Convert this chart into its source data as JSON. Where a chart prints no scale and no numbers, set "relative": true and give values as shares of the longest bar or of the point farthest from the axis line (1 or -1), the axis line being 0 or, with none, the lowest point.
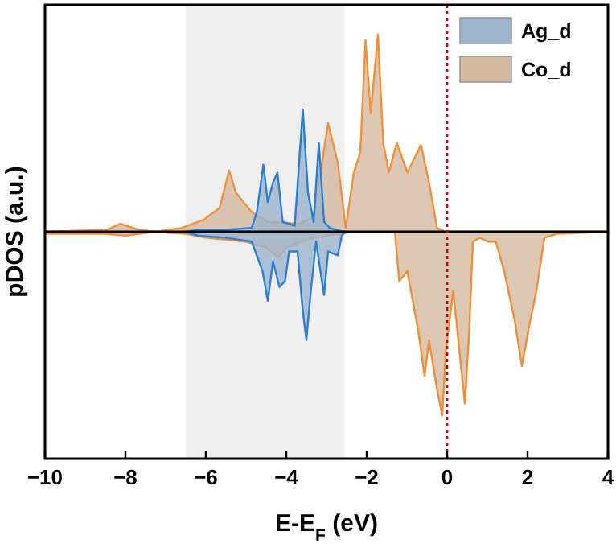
{
  "chart_data": {
    "type": "area",
    "relative": true,
    "xlabel": "E-E$_{F}$ (eV)",
    "ylabel": "pDOS (a.u.)",
    "xlim": [
      -10,
      4
    ],
    "xticks": [
      -10,
      -8,
      -6,
      -4,
      -2,
      0,
      2,
      4
    ],
    "tick_labels": "x",
    "legend": "top right",
    "grid": false,
    "bands": [
      {
        "axis": "x",
        "from": -6.5,
        "to": -2.55,
        "color": "#efefef"
      }
    ],
    "ref_lines": [
      {
        "axis": "x",
        "value": 0,
        "color": "#c00000",
        "line_style": "dotted"
      }
    ],
    "series": [
      {
        "name": "Ag_d",
        "color": "#2a7fd4",
        "x": [
          -6.5,
          -6.2,
          -5.5,
          -4.86,
          -4.73,
          -4.57,
          -4.46,
          -4.33,
          -4.22,
          -4.09,
          -3.79,
          -3.59,
          -3.46,
          -3.32,
          -3.19,
          -3.06,
          -2.92,
          -2.59,
          -2.5
        ],
        "values": [
          0,
          0.01,
          0.01,
          0.02,
          0.1,
          0.34,
          0.15,
          0.25,
          0.3,
          0.05,
          0.03,
          0.62,
          0.2,
          0.05,
          0.45,
          0.05,
          0.02,
          0,
          0
        ]
      },
      {
        "color": "#2b80d6",
        "x": [
          -6.5,
          -6.19,
          -5.53,
          -4.86,
          -4.59,
          -4.46,
          -4.33,
          -4.17,
          -4.03,
          -3.93,
          -3.72,
          -3.59,
          -3.5,
          -3.39,
          -3.26,
          -3.15,
          -3.06,
          -2.96,
          -2.72,
          -2.62,
          -2.52
        ],
        "values": [
          0,
          -0.02,
          -0.03,
          -0.05,
          -0.2,
          -0.35,
          -0.15,
          -0.28,
          -0.25,
          -0.1,
          -0.1,
          -0.4,
          -0.55,
          -0.3,
          -0.05,
          -0.2,
          -0.32,
          -0.1,
          -0.12,
          -0.02,
          0
        ]
      },
      {
        "name": "Co_d",
        "color": "#f0913a",
        "x": [
          -10,
          -8.46,
          -8.13,
          -7.66,
          -7.26,
          -6.6,
          -6.06,
          -5.66,
          -5.42,
          -5.26,
          -4.86,
          -4.46,
          -3.66,
          -3.32,
          -3.15,
          -2.96,
          -2.72,
          -2.52,
          -2.32,
          -2.16,
          -2.03,
          -1.9,
          -1.72,
          -1.59,
          -1.45,
          -1.25,
          -0.99,
          -0.65,
          -0.45,
          -0.25,
          -0.05,
          4
        ],
        "values": [
          0,
          0.01,
          0.04,
          0.01,
          0,
          0.02,
          0.06,
          0.12,
          0.31,
          0.2,
          0.1,
          0.05,
          0.04,
          0.08,
          0.3,
          0.55,
          0.35,
          0.02,
          0.3,
          0.4,
          0.97,
          0.6,
          1,
          0.45,
          0.3,
          0.45,
          0.3,
          0.44,
          0.25,
          0.02,
          0,
          0
        ]
      },
      {
        "color": "#ee8f38",
        "x": [
          -10,
          -8.5,
          -8,
          -7.3,
          -6.5,
          -6,
          -5,
          -4.5,
          -4.2,
          -4,
          -3.5,
          -3,
          -2.6,
          -2.4,
          -1.3,
          -1.19,
          -0.99,
          -0.72,
          -0.56,
          -0.45,
          -0.25,
          -0.12,
          -0.03,
          0.15,
          0.28,
          0.44,
          0.55,
          0.64,
          0.81,
          1.01,
          1.21,
          1.42,
          1.68,
          1.86,
          2.02,
          2.22,
          2.42,
          2.75,
          4
        ],
        "values": [
          -0.01,
          -0.01,
          -0.02,
          0,
          -0.01,
          -0.03,
          -0.05,
          -0.08,
          -0.13,
          -0.08,
          -0.04,
          -0.02,
          -0.01,
          0,
          0,
          -0.25,
          -0.2,
          -0.5,
          -0.73,
          -0.55,
          -0.8,
          -0.93,
          -0.6,
          -0.3,
          -0.55,
          -0.87,
          -0.5,
          -0.05,
          -0.03,
          -0.05,
          -0.05,
          -0.2,
          -0.45,
          -0.68,
          -0.5,
          -0.3,
          -0.03,
          -0.01,
          0
        ]
      }
    ]
  }
}
